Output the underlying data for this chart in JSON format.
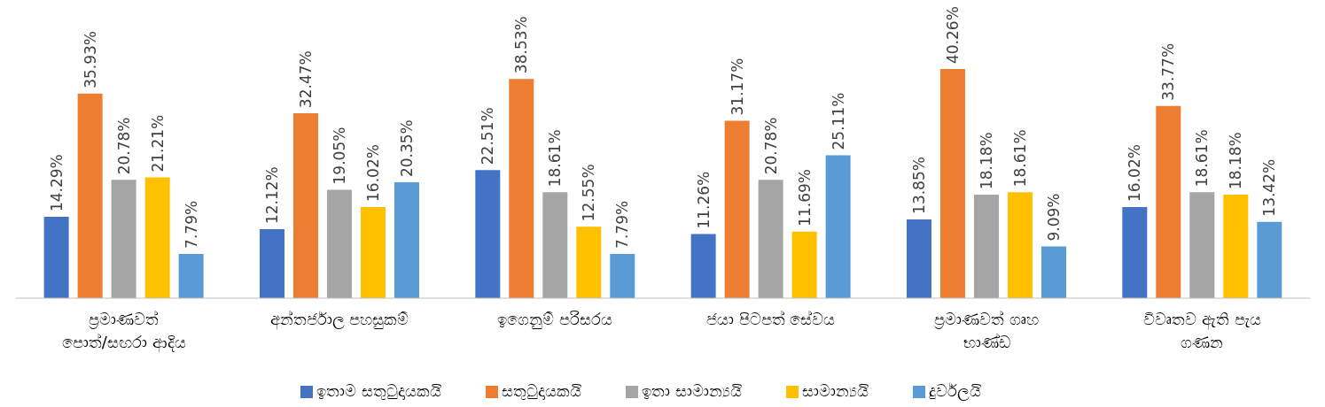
{
  "chart_data": {
    "type": "bar",
    "categories": [
      "ප්‍රමාණවත් පොත්/සඟරා ආදිය",
      "අන්තර්ජාල පහසුකම්",
      "ඉගෙනුම් පරිසරය",
      "ජයා පිටපත් සේවය",
      "ප්‍රමාණවත් ගෘහ භාණ්ඩ",
      "විවෘතව ඇති පැය ගණන"
    ],
    "series": [
      {
        "name": "ඉතාම සතුටුදායකයි",
        "color": "#4472c4",
        "values": [
          14.29,
          12.12,
          22.51,
          11.26,
          13.85,
          16.02
        ],
        "value_labels": [
          "14.29%",
          "12.12%",
          "22.51%",
          "11.26%",
          "13.85%",
          "16.02%"
        ]
      },
      {
        "name": "සතුටුදායකයි",
        "color": "#ed7d31",
        "values": [
          35.93,
          32.47,
          38.53,
          31.17,
          40.26,
          33.77
        ],
        "value_labels": [
          "35.93%",
          "32.47%",
          "38.53%",
          "31.17%",
          "40.26%",
          "33.77%"
        ]
      },
      {
        "name": "ඉතා සාමාන්‍යයි",
        "color": "#a5a5a5",
        "values": [
          20.78,
          19.05,
          18.61,
          20.78,
          18.18,
          18.61
        ],
        "value_labels": [
          "20.78%",
          "19.05%",
          "18.61%",
          "20.78%",
          "18.18%",
          "18.61%"
        ]
      },
      {
        "name": "සාමාන්‍යයි",
        "color": "#ffc000",
        "values": [
          21.21,
          16.02,
          12.55,
          11.69,
          18.61,
          18.18
        ],
        "value_labels": [
          "21.21%",
          "16.02%",
          "12.55%",
          "11.69%",
          "18.61%",
          "18.18%"
        ]
      },
      {
        "name": "දුර්වලයි",
        "color": "#5b9bd5",
        "values": [
          7.79,
          20.35,
          7.79,
          25.11,
          9.09,
          13.42
        ],
        "value_labels": [
          "7.79%",
          "20.35%",
          "7.79%",
          "25.11%",
          "9.09%",
          "13.42%"
        ]
      }
    ],
    "legend": "bottom",
    "grid": false
  }
}
